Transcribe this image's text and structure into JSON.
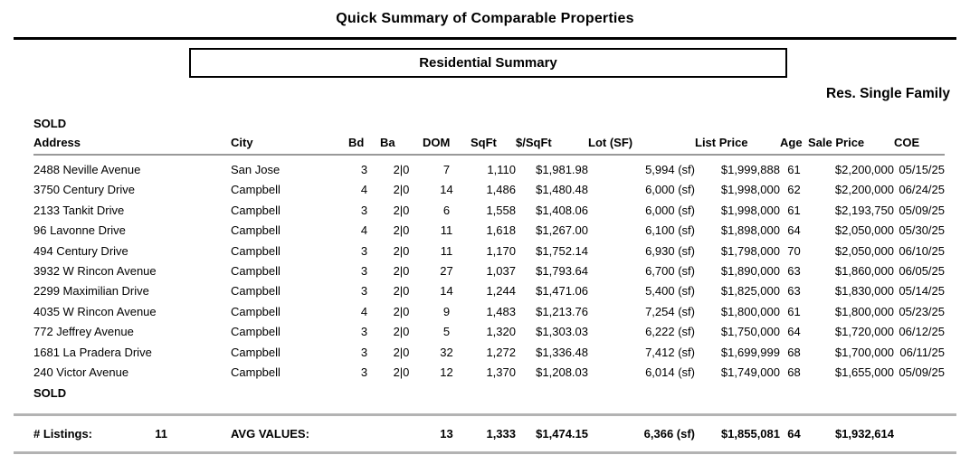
{
  "page": {
    "title": "Quick Summary of Comparable Properties",
    "box_title": "Residential Summary",
    "property_type": "Res. Single Family"
  },
  "table": {
    "section_label_top": "SOLD",
    "section_label_bottom": "SOLD",
    "columns": [
      {
        "key": "address",
        "label": "Address"
      },
      {
        "key": "city",
        "label": "City"
      },
      {
        "key": "bd",
        "label": "Bd"
      },
      {
        "key": "ba",
        "label": "Ba"
      },
      {
        "key": "dom",
        "label": "DOM"
      },
      {
        "key": "sqft",
        "label": "SqFt"
      },
      {
        "key": "price_per_sqft",
        "label": "$/SqFt"
      },
      {
        "key": "lot_sf",
        "label": "Lot (SF)"
      },
      {
        "key": "list_price",
        "label": "List Price"
      },
      {
        "key": "age",
        "label": "Age"
      },
      {
        "key": "sale_price",
        "label": "Sale Price"
      },
      {
        "key": "coe",
        "label": "COE"
      }
    ],
    "rows": [
      {
        "address": "2488 Neville Avenue",
        "city": "San Jose",
        "bd": "3",
        "ba": "2|0",
        "dom": "7",
        "sqft": "1,110",
        "price_per_sqft": "$1,981.98",
        "lot_sf": "5,994 (sf)",
        "list_price": "$1,999,888",
        "age": "61",
        "sale_price": "$2,200,000",
        "coe": "05/15/25"
      },
      {
        "address": "3750 Century Drive",
        "city": "Campbell",
        "bd": "4",
        "ba": "2|0",
        "dom": "14",
        "sqft": "1,486",
        "price_per_sqft": "$1,480.48",
        "lot_sf": "6,000 (sf)",
        "list_price": "$1,998,000",
        "age": "62",
        "sale_price": "$2,200,000",
        "coe": "06/24/25"
      },
      {
        "address": "2133 Tankit Drive",
        "city": "Campbell",
        "bd": "3",
        "ba": "2|0",
        "dom": "6",
        "sqft": "1,558",
        "price_per_sqft": "$1,408.06",
        "lot_sf": "6,000 (sf)",
        "list_price": "$1,998,000",
        "age": "61",
        "sale_price": "$2,193,750",
        "coe": "05/09/25"
      },
      {
        "address": "96 Lavonne Drive",
        "city": "Campbell",
        "bd": "4",
        "ba": "2|0",
        "dom": "11",
        "sqft": "1,618",
        "price_per_sqft": "$1,267.00",
        "lot_sf": "6,100 (sf)",
        "list_price": "$1,898,000",
        "age": "64",
        "sale_price": "$2,050,000",
        "coe": "05/30/25"
      },
      {
        "address": "494 Century Drive",
        "city": "Campbell",
        "bd": "3",
        "ba": "2|0",
        "dom": "11",
        "sqft": "1,170",
        "price_per_sqft": "$1,752.14",
        "lot_sf": "6,930 (sf)",
        "list_price": "$1,798,000",
        "age": "70",
        "sale_price": "$2,050,000",
        "coe": "06/10/25"
      },
      {
        "address": "3932 W Rincon Avenue",
        "city": "Campbell",
        "bd": "3",
        "ba": "2|0",
        "dom": "27",
        "sqft": "1,037",
        "price_per_sqft": "$1,793.64",
        "lot_sf": "6,700 (sf)",
        "list_price": "$1,890,000",
        "age": "63",
        "sale_price": "$1,860,000",
        "coe": "06/05/25"
      },
      {
        "address": "2299 Maximilian Drive",
        "city": "Campbell",
        "bd": "3",
        "ba": "2|0",
        "dom": "14",
        "sqft": "1,244",
        "price_per_sqft": "$1,471.06",
        "lot_sf": "5,400 (sf)",
        "list_price": "$1,825,000",
        "age": "63",
        "sale_price": "$1,830,000",
        "coe": "05/14/25"
      },
      {
        "address": "4035 W Rincon Avenue",
        "city": "Campbell",
        "bd": "4",
        "ba": "2|0",
        "dom": "9",
        "sqft": "1,483",
        "price_per_sqft": "$1,213.76",
        "lot_sf": "7,254 (sf)",
        "list_price": "$1,800,000",
        "age": "61",
        "sale_price": "$1,800,000",
        "coe": "05/23/25"
      },
      {
        "address": "772 Jeffrey Avenue",
        "city": "Campbell",
        "bd": "3",
        "ba": "2|0",
        "dom": "5",
        "sqft": "1,320",
        "price_per_sqft": "$1,303.03",
        "lot_sf": "6,222 (sf)",
        "list_price": "$1,750,000",
        "age": "64",
        "sale_price": "$1,720,000",
        "coe": "06/12/25"
      },
      {
        "address": "1681 La Pradera Drive",
        "city": "Campbell",
        "bd": "3",
        "ba": "2|0",
        "dom": "32",
        "sqft": "1,272",
        "price_per_sqft": "$1,336.48",
        "lot_sf": "7,412 (sf)",
        "list_price": "$1,699,999",
        "age": "68",
        "sale_price": "$1,700,000",
        "coe": "06/11/25"
      },
      {
        "address": "240 Victor Avenue",
        "city": "Campbell",
        "bd": "3",
        "ba": "2|0",
        "dom": "12",
        "sqft": "1,370",
        "price_per_sqft": "$1,208.03",
        "lot_sf": "6,014 (sf)",
        "list_price": "$1,749,000",
        "age": "68",
        "sale_price": "$1,655,000",
        "coe": "05/09/25"
      }
    ],
    "footer": {
      "listings_label": "# Listings:",
      "listings_count": "11",
      "avg_label": "AVG VALUES:",
      "dom": "13",
      "sqft": "1,333",
      "price_per_sqft": "$1,474.15",
      "lot_sf": "6,366 (sf)",
      "list_price": "$1,855,081",
      "age": "64",
      "sale_price": "$1,932,614",
      "coe": ""
    }
  },
  "colors": {
    "text": "#000000",
    "top_rule": "#000000",
    "header_rule": "#999999",
    "totals_rule": "#b3b3b3"
  }
}
